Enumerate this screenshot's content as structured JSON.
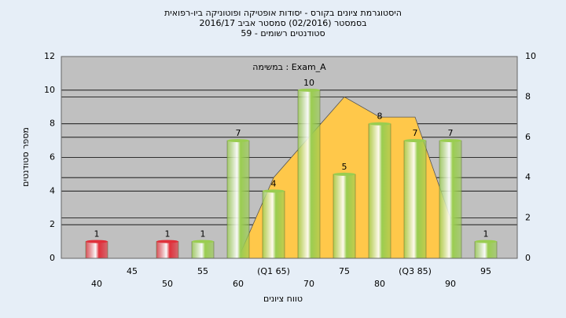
{
  "chart_data": {
    "type": "bar",
    "title": [
      "היסטוגרמת ציונים בקורס - יסודות אופטיקה ופוטוניקה ביו-רפואית",
      "בסמסטר  (02/2016)  סמסטר אביב 2016/17",
      "סטודנטים רשומים - 59"
    ],
    "subtitle": "במשימה : Exam_A",
    "x_label": "טווח ציונים",
    "y_label": "מספר סטודנטים",
    "categories": [
      "40",
      "45",
      "50",
      "55",
      "60",
      "(Q1 65)",
      "70",
      "75",
      "80",
      "(Q3 85)",
      "90",
      "95"
    ],
    "series": [
      {
        "values": [
          1,
          null,
          1,
          1,
          7,
          4,
          10,
          5,
          8,
          7,
          7,
          1
        ],
        "colors": [
          "#e0303a",
          null,
          "#e0303a",
          "#9acd50",
          "#9acd50",
          "#9acd50",
          "#9acd50",
          "#9acd50",
          "#9acd50",
          "#9acd50",
          "#9acd50",
          "#9acd50"
        ]
      },
      {
        "type": "area",
        "axis": "y2",
        "color": "#ffc84a",
        "values": [
          null,
          null,
          null,
          null,
          0,
          4,
          6,
          8,
          7,
          7,
          2,
          null
        ]
      }
    ],
    "ylim": [
      0,
      12
    ],
    "yticks": [
      0,
      2,
      4,
      6,
      8,
      10,
      12
    ],
    "y2lim": [
      0,
      10
    ],
    "y2ticks": [
      0,
      2,
      4,
      6,
      8,
      10
    ],
    "grid": true
  }
}
